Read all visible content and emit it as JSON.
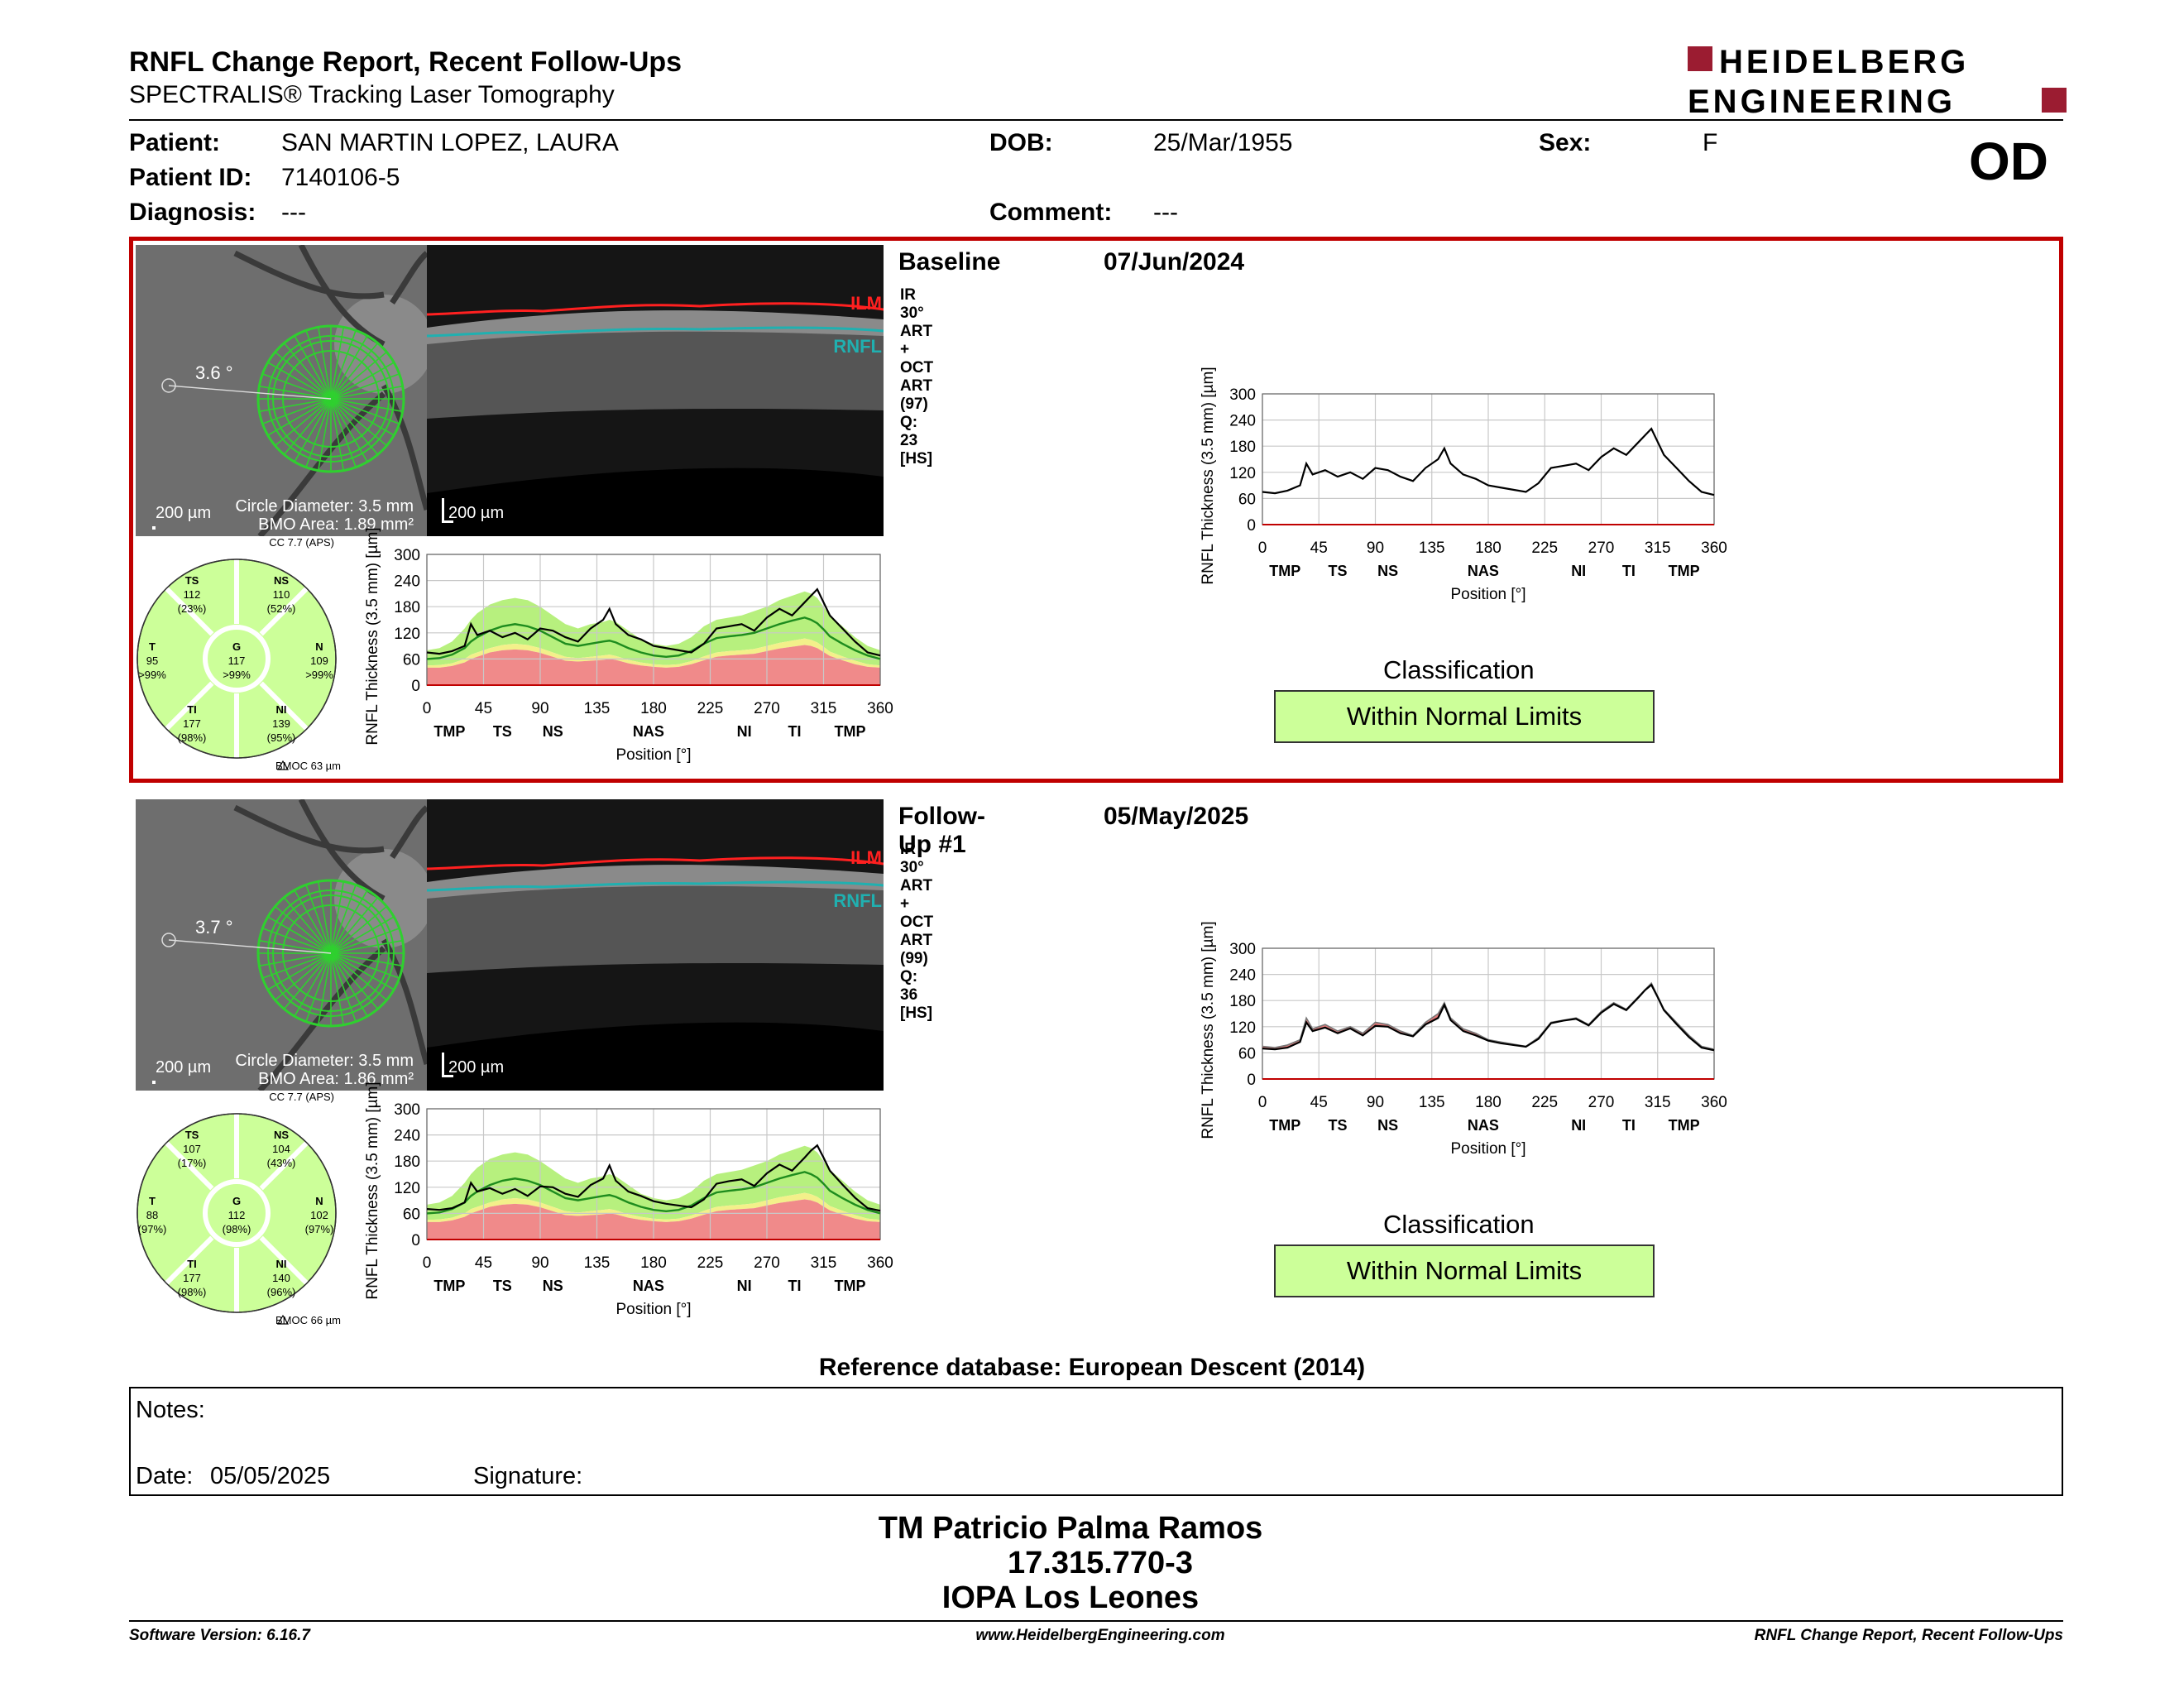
{
  "report_title": "RNFL Change Report, Recent Follow-Ups",
  "subtitle": "SPECTRALIS® Tracking Laser Tomography",
  "logo": {
    "line1": "HEIDELBERG",
    "line2": "ENGINEERING",
    "brand_color": "#9b1c31"
  },
  "patient": {
    "name_label": "Patient:",
    "name": "SAN MARTIN LOPEZ, LAURA",
    "id_label": "Patient ID:",
    "id": "7140106-5",
    "diagnosis_label": "Diagnosis:",
    "diagnosis": "---",
    "dob_label": "DOB:",
    "dob": "25/Mar/1955",
    "comment_label": "Comment:",
    "comment": "---",
    "sex_label": "Sex:",
    "sex": "F"
  },
  "eye": "OD",
  "colors": {
    "highlight": "#c00000",
    "ilm": "#ff2020",
    "rnfl": "#20b0b0",
    "normal": "#ccff99",
    "grid": "#2d9a2d"
  },
  "exams": [
    {
      "name": "Baseline",
      "date": "07/Jun/2024",
      "scan_info": "IR 30° ART + OCT ART (97) Q: 23 [HS]",
      "angle": "3.6 °",
      "scale_bar": "200 µm",
      "oct_scale": "200 µm",
      "circle_diameter": "Circle Diameter: 3.5 mm",
      "bmo_area": "BMO Area: 1.89 mm²",
      "cc": "CC 7.7 (APS)",
      "bmoc": "BMOC 63 µm",
      "sectors": {
        "TS": {
          "label": "TS",
          "value": "112",
          "pct": "(23%)"
        },
        "NS": {
          "label": "NS",
          "value": "110",
          "pct": "(52%)"
        },
        "T": {
          "label": "T",
          "value": "95",
          "pct": ">99%"
        },
        "G": {
          "label": "G",
          "value": "117",
          "pct": ">99%"
        },
        "N": {
          "label": "N",
          "value": "109",
          "pct": ">99%"
        },
        "TI": {
          "label": "TI",
          "value": "177",
          "pct": "(98%)"
        },
        "NI": {
          "label": "NI",
          "value": "139",
          "pct": "(95%)"
        }
      },
      "classification_title": "Classification",
      "classification": "Within Normal Limits"
    },
    {
      "name": "Follow-Up #1",
      "date": "05/May/2025",
      "scan_info": "IR 30° ART + OCT ART (99) Q: 36 [HS]",
      "angle": "3.7 °",
      "scale_bar": "200 µm",
      "oct_scale": "200 µm",
      "circle_diameter": "Circle Diameter: 3.5 mm",
      "bmo_area": "BMO Area: 1.86 mm²",
      "cc": "CC 7.7 (APS)",
      "bmoc": "BMOC 66 µm",
      "sectors": {
        "TS": {
          "label": "TS",
          "value": "107",
          "pct": "(17%)"
        },
        "NS": {
          "label": "NS",
          "value": "104",
          "pct": "(43%)"
        },
        "T": {
          "label": "T",
          "value": "88",
          "pct": "(97%)"
        },
        "G": {
          "label": "G",
          "value": "112",
          "pct": "(98%)"
        },
        "N": {
          "label": "N",
          "value": "102",
          "pct": "(97%)"
        },
        "TI": {
          "label": "TI",
          "value": "177",
          "pct": "(98%)"
        },
        "NI": {
          "label": "NI",
          "value": "140",
          "pct": "(96%)"
        }
      },
      "classification_title": "Classification",
      "classification": "Within Normal Limits"
    }
  ],
  "chart_data": {
    "type": "line",
    "ylabel": "RNFL Thickness (3.5 mm) [µm]",
    "xlabel": "Position [°]",
    "ylim": [
      0,
      300
    ],
    "xlim": [
      0,
      360
    ],
    "yticks": [
      "0",
      "60",
      "120",
      "180",
      "240",
      "300"
    ],
    "xticks": [
      "0",
      "45",
      "90",
      "135",
      "180",
      "225",
      "270",
      "315",
      "360"
    ],
    "sector_ticks": [
      {
        "label": "TMP",
        "x": 18
      },
      {
        "label": "TS",
        "x": 60
      },
      {
        "label": "NS",
        "x": 100
      },
      {
        "label": "NAS",
        "x": 176
      },
      {
        "label": "NI",
        "x": 252
      },
      {
        "label": "TI",
        "x": 292
      },
      {
        "label": "TMP",
        "x": 336
      }
    ],
    "x": [
      0,
      10,
      20,
      30,
      35,
      40,
      50,
      60,
      70,
      80,
      90,
      100,
      110,
      120,
      130,
      140,
      145,
      150,
      160,
      170,
      180,
      190,
      200,
      210,
      220,
      230,
      240,
      250,
      260,
      270,
      280,
      290,
      300,
      305,
      310,
      315,
      320,
      330,
      340,
      350,
      360
    ],
    "baseline": [
      75,
      72,
      78,
      90,
      140,
      115,
      125,
      110,
      120,
      105,
      130,
      125,
      110,
      100,
      130,
      150,
      175,
      140,
      115,
      105,
      90,
      85,
      80,
      75,
      95,
      130,
      135,
      140,
      125,
      155,
      175,
      160,
      190,
      205,
      220,
      190,
      160,
      130,
      100,
      75,
      68
    ],
    "followup": [
      70,
      68,
      72,
      85,
      130,
      110,
      118,
      105,
      116,
      100,
      122,
      120,
      105,
      98,
      125,
      140,
      170,
      135,
      110,
      100,
      88,
      82,
      78,
      74,
      92,
      128,
      134,
      138,
      123,
      152,
      172,
      158,
      188,
      204,
      216,
      188,
      158,
      126,
      96,
      72,
      66
    ],
    "normal_upper": [
      80,
      85,
      100,
      130,
      150,
      165,
      185,
      195,
      200,
      195,
      180,
      160,
      140,
      130,
      140,
      145,
      150,
      145,
      125,
      105,
      95,
      90,
      95,
      110,
      135,
      150,
      155,
      160,
      170,
      180,
      195,
      205,
      215,
      210,
      200,
      180,
      160,
      135,
      110,
      90,
      80
    ],
    "normal_mean": [
      60,
      62,
      70,
      85,
      100,
      110,
      125,
      135,
      140,
      135,
      125,
      110,
      95,
      90,
      95,
      100,
      102,
      98,
      85,
      75,
      68,
      65,
      68,
      78,
      95,
      108,
      112,
      115,
      120,
      130,
      140,
      148,
      155,
      150,
      142,
      128,
      112,
      95,
      80,
      68,
      60
    ],
    "borderline": [
      45,
      46,
      50,
      60,
      70,
      75,
      85,
      92,
      95,
      92,
      85,
      75,
      65,
      62,
      65,
      68,
      70,
      67,
      58,
      52,
      48,
      46,
      48,
      55,
      66,
      75,
      78,
      80,
      83,
      90,
      97,
      102,
      107,
      104,
      98,
      88,
      77,
      66,
      56,
      48,
      45
    ],
    "abnormal": [
      40,
      40,
      44,
      52,
      60,
      65,
      75,
      80,
      82,
      80,
      74,
      65,
      56,
      54,
      56,
      58,
      60,
      58,
      50,
      45,
      42,
      40,
      42,
      48,
      57,
      65,
      68,
      70,
      72,
      78,
      84,
      88,
      92,
      90,
      85,
      76,
      67,
      57,
      48,
      42,
      40
    ]
  },
  "reference_database": "Reference database: European Descent (2014)",
  "notes": {
    "notes_label": "Notes:",
    "date_label": "Date:",
    "date": "05/05/2025",
    "signature_label": "Signature:"
  },
  "signer": {
    "name": "TM Patricio Palma Ramos",
    "id": "17.315.770-3",
    "org": "IOPA Los Leones"
  },
  "footer": {
    "software": "Software Version: 6.16.7",
    "website": "www.HeidelbergEngineering.com",
    "report": "RNFL Change Report, Recent Follow-Ups"
  }
}
